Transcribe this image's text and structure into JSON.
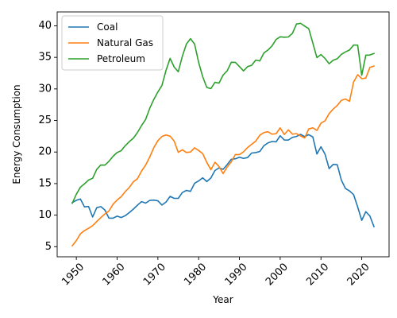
{
  "chart_data": {
    "type": "line",
    "title": "",
    "xlabel": "Year",
    "ylabel": "Energy Consumption",
    "xlim": [
      1945.3,
      2026.7
    ],
    "ylim": [
      3.4,
      42.2
    ],
    "xticks": [
      1950,
      1960,
      1970,
      1980,
      1990,
      2000,
      2010,
      2020
    ],
    "yticks": [
      5,
      10,
      15,
      20,
      25,
      30,
      35,
      40
    ],
    "grid": false,
    "legend_position": "top-left",
    "x": [
      1949,
      1950,
      1951,
      1952,
      1953,
      1954,
      1955,
      1956,
      1957,
      1958,
      1959,
      1960,
      1961,
      1962,
      1963,
      1964,
      1965,
      1966,
      1967,
      1968,
      1969,
      1970,
      1971,
      1972,
      1973,
      1974,
      1975,
      1976,
      1977,
      1978,
      1979,
      1980,
      1981,
      1982,
      1983,
      1984,
      1985,
      1986,
      1987,
      1988,
      1989,
      1990,
      1991,
      1992,
      1993,
      1994,
      1995,
      1996,
      1997,
      1998,
      1999,
      2000,
      2001,
      2002,
      2003,
      2004,
      2005,
      2006,
      2007,
      2008,
      2009,
      2010,
      2011,
      2012,
      2013,
      2014,
      2015,
      2016,
      2017,
      2018,
      2019,
      2020,
      2021,
      2022,
      2023
    ],
    "series": [
      {
        "name": "Coal",
        "color": "#1f77b4",
        "values": [
          11.98,
          12.35,
          12.55,
          11.31,
          11.37,
          9.71,
          11.17,
          11.35,
          10.82,
          9.53,
          9.52,
          9.84,
          9.62,
          9.91,
          10.41,
          10.96,
          11.58,
          12.14,
          11.91,
          12.33,
          12.38,
          12.27,
          11.6,
          12.08,
          12.97,
          12.66,
          12.66,
          13.58,
          13.92,
          13.77,
          15.04,
          15.42,
          15.91,
          15.32,
          15.89,
          17.07,
          17.48,
          17.26,
          18.01,
          18.85,
          18.93,
          19.17,
          18.99,
          19.12,
          19.84,
          19.91,
          20.09,
          21.0,
          21.45,
          21.66,
          21.62,
          22.58,
          21.91,
          21.9,
          22.32,
          22.47,
          22.8,
          22.45,
          22.75,
          22.39,
          19.69,
          20.83,
          19.66,
          17.38,
          18.04,
          17.99,
          15.55,
          14.23,
          13.84,
          13.25,
          11.31,
          9.18,
          10.55,
          9.86,
          8.17
        ]
      },
      {
        "name": "Natural Gas",
        "color": "#ff7f0e",
        "values": [
          5.15,
          5.97,
          7.05,
          7.55,
          7.91,
          8.33,
          8.99,
          9.61,
          10.19,
          10.66,
          11.72,
          12.39,
          12.93,
          13.73,
          14.4,
          15.29,
          15.77,
          16.99,
          17.94,
          19.21,
          20.68,
          21.8,
          22.47,
          22.7,
          22.51,
          21.73,
          19.95,
          20.35,
          19.93,
          20.0,
          20.67,
          20.24,
          19.74,
          18.36,
          17.2,
          18.38,
          17.7,
          16.59,
          17.63,
          18.44,
          19.6,
          19.6,
          20.03,
          20.71,
          21.23,
          21.73,
          22.67,
          23.08,
          23.22,
          22.83,
          22.91,
          23.82,
          22.77,
          23.51,
          22.83,
          22.91,
          22.56,
          22.22,
          23.66,
          23.84,
          23.42,
          24.57,
          24.95,
          26.09,
          26.81,
          27.38,
          28.19,
          28.4,
          28.03,
          31.1,
          32.25,
          31.62,
          31.72,
          33.41,
          33.62
        ]
      },
      {
        "name": "Petroleum",
        "color": "#2ca02c",
        "values": [
          11.88,
          13.31,
          14.43,
          14.96,
          15.56,
          15.84,
          17.25,
          17.94,
          17.93,
          18.53,
          19.32,
          19.92,
          20.21,
          21.0,
          21.65,
          22.2,
          23.1,
          24.2,
          25.17,
          26.93,
          28.33,
          29.52,
          30.56,
          32.95,
          34.84,
          33.46,
          32.73,
          35.17,
          37.12,
          37.97,
          37.12,
          34.2,
          31.93,
          30.23,
          30.05,
          31.05,
          30.92,
          32.2,
          32.87,
          34.22,
          34.21,
          33.55,
          32.85,
          33.53,
          33.74,
          34.56,
          34.44,
          35.7,
          36.16,
          36.82,
          37.84,
          38.26,
          38.19,
          38.23,
          38.81,
          40.29,
          40.39,
          39.96,
          39.55,
          37.28,
          34.96,
          35.45,
          34.82,
          33.99,
          34.55,
          34.79,
          35.47,
          35.86,
          36.17,
          36.95,
          36.94,
          32.16,
          35.34,
          35.38,
          35.61
        ]
      }
    ]
  }
}
